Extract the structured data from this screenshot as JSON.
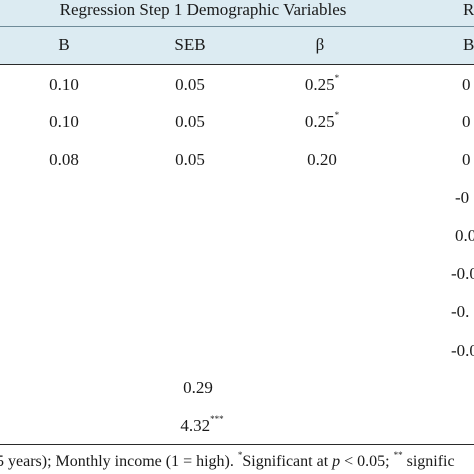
{
  "table": {
    "group_headers": {
      "step1": "Regression Step 1 Demographic Variables",
      "step2_partial": "R"
    },
    "column_headers": {
      "b": "B",
      "seb": "SEB",
      "beta": "β",
      "b_partial": "B"
    },
    "rows": [
      {
        "b": "0.10",
        "seb": "0.05",
        "beta": "0.25",
        "beta_sup": "*",
        "right": "0"
      },
      {
        "b": "0.10",
        "seb": "0.05",
        "beta": "0.25",
        "beta_sup": "*",
        "right": "0"
      },
      {
        "b": "0.08",
        "seb": "0.05",
        "beta": "0.20",
        "beta_sup": "",
        "right": "0"
      },
      {
        "right": "-0"
      },
      {
        "right": "0.0"
      },
      {
        "right": "-0.0"
      },
      {
        "right": "-0."
      },
      {
        "right": "-0.0"
      }
    ],
    "summary": {
      "r_squared_value": "0.29",
      "f_value": "4.32",
      "f_sup": "***"
    }
  },
  "footnote": {
    "part1": "5 years); Monthly income (1 = high). ",
    "sup1": "*",
    "part2": "Significant at ",
    "p_symbol": "p",
    "part3": " < 0.05; ",
    "sup2": "**",
    "part4": " signific"
  }
}
